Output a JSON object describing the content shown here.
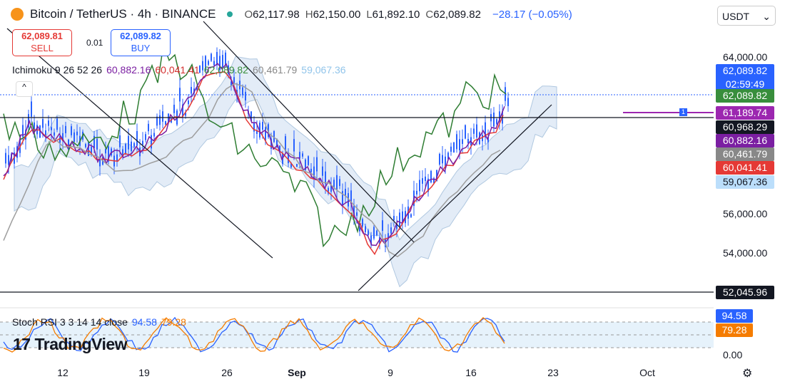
{
  "header": {
    "symbol": "Bitcoin / TetherUS · 4h · BINANCE",
    "ohlc": [
      {
        "key": "O",
        "value": "62,117.98"
      },
      {
        "key": "H",
        "value": "62,150.00"
      },
      {
        "key": "L",
        "value": "61,892.10"
      },
      {
        "key": "C",
        "value": "62,089.82"
      }
    ],
    "change": "−28.17 (−0.05%)",
    "currency": "USDT"
  },
  "trade": {
    "sell": {
      "price": "62,089.81",
      "label": "SELL"
    },
    "spread": "0.01",
    "buy": {
      "price": "62,089.82",
      "label": "BUY"
    }
  },
  "ichimoku": {
    "name": "Ichimoku",
    "params": "9 26 52 26",
    "values": [
      {
        "text": "60,882.16",
        "color": "#7b1fa2"
      },
      {
        "text": "60,041.41",
        "color": "#d32f2f"
      },
      {
        "text": "62,089.82",
        "color": "#388e3c"
      },
      {
        "text": "60,461.79",
        "color": "#888888"
      },
      {
        "text": "59,067.36",
        "color": "#90c4ea"
      }
    ]
  },
  "price_axis": [
    "64,000.00",
    "56,000.00",
    "54,000.00"
  ],
  "price_tags": [
    {
      "lines": [
        "62,089.82",
        "02:59:49"
      ],
      "bg": "#2962ff"
    },
    {
      "lines": [
        "62,089.82"
      ],
      "bg": "#388e3c"
    },
    {
      "lines": [
        "61,189.74"
      ],
      "bg": "#9c27b0"
    },
    {
      "lines": [
        "60,968.29"
      ],
      "bg": "#131722"
    },
    {
      "lines": [
        "60,882.16"
      ],
      "bg": "#7b1fa2"
    },
    {
      "lines": [
        "60,461.79"
      ],
      "bg": "#888888"
    },
    {
      "lines": [
        "60,041.41"
      ],
      "bg": "#e53935"
    },
    {
      "lines": [
        "59,067.36"
      ],
      "bg": "#bbdefb",
      "fg": "#131722"
    },
    {
      "lines": [
        "52,045.96"
      ],
      "bg": "#131722"
    }
  ],
  "stoch": {
    "name": "Stoch RSI",
    "params": "3 3 14 14 close",
    "values": [
      {
        "text": "94.58",
        "color": "#2962ff"
      },
      {
        "text": "79.28",
        "color": "#f57c00"
      }
    ],
    "axis": "0.00",
    "tags": [
      {
        "text": "94.58",
        "bg": "#2962ff"
      },
      {
        "text": "79.28",
        "bg": "#f57c00"
      }
    ]
  },
  "x_axis": [
    "12",
    "19",
    "26",
    "Sep",
    "9",
    "16",
    "23",
    "Oct"
  ],
  "marker": "1",
  "logo": "TradingView"
}
